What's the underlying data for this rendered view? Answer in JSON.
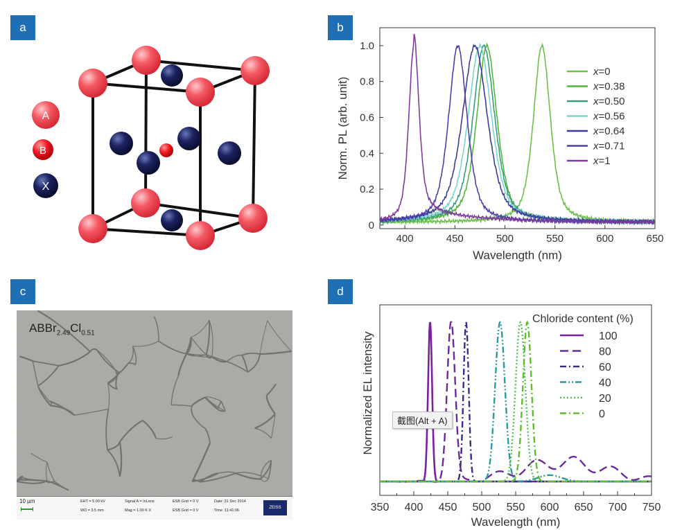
{
  "panels": {
    "a": {
      "label": "a",
      "legend": [
        "A",
        "B",
        "X"
      ]
    },
    "b": {
      "label": "b"
    },
    "c": {
      "label": "c",
      "sample": {
        "prefix": "ABBr",
        "br_sub": "2.49",
        "cl": "Cl",
        "cl_sub": "0.51"
      },
      "footer": {
        "scale": "10 µm",
        "eht": "EHT = 5.00 kV",
        "wd": "WD = 3.5 mm",
        "signal": "Signal A = InLens",
        "mag": "Mag = 1.00 K X",
        "grid1": "ESB Grid = 0 V",
        "grid2": "ESB Grid = 0 V",
        "date": "Date :31 Dec 2014",
        "time": "Time :11:41:06",
        "logo": "ZEISS"
      }
    },
    "d": {
      "label": "d"
    }
  },
  "tooltip": "截图(Alt + A)",
  "colors": {
    "panel_label_bg": "#1f6fb5",
    "atom_A": "#f0505a",
    "atom_B": "#e8141c",
    "atom_X": "#1a2150"
  },
  "chart_data": [
    {
      "type": "line",
      "panel": "b",
      "xlabel": "Wavelength (nm)",
      "ylabel": "Norm. PL (arb. unit)",
      "xlim": [
        375,
        650
      ],
      "ylim": [
        -0.02,
        1.1
      ],
      "xticks": [
        400,
        450,
        500,
        550,
        600,
        650
      ],
      "yticks": [
        0,
        0.2,
        0.4,
        0.6,
        0.8,
        1.0
      ],
      "ytick_labels": [
        "0",
        "0.2",
        "0.4",
        "0.6",
        "0.8",
        "1.0"
      ],
      "legend_position": "top-right",
      "series": [
        {
          "name": "x=0",
          "var": "x",
          "val": "=0",
          "color": "#6cc04a",
          "peak": 537,
          "fwhm": 20
        },
        {
          "name": "x=0.38",
          "var": "x",
          "val": "=0.38",
          "color": "#52b83a",
          "peak": 482,
          "fwhm": 24
        },
        {
          "name": "x=0.50",
          "var": "x",
          "val": "=0.50",
          "color": "#3a9a7a",
          "peak": 479,
          "fwhm": 26
        },
        {
          "name": "x=0.56",
          "var": "x",
          "val": "=0.56",
          "color": "#7dd3cf",
          "peak": 475,
          "fwhm": 28
        },
        {
          "name": "x=0.64",
          "var": "x",
          "val": "=0.64",
          "color": "#3a3a9a",
          "peak": 470,
          "fwhm": 30
        },
        {
          "name": "x=0.71",
          "var": "x",
          "val": "=0.71",
          "color": "#4b3fa8",
          "peak": 453,
          "fwhm": 22
        },
        {
          "name": "x=1",
          "var": "x",
          "val": "=1",
          "color": "#7d3a9e",
          "peak": 409,
          "fwhm": 12
        }
      ]
    },
    {
      "type": "line",
      "panel": "d",
      "title": "Chloride content (%)",
      "xlabel": "Wavelength (nm)",
      "ylabel": "Normalized EL intensity",
      "xlim": [
        350,
        750
      ],
      "xticks": [
        350,
        400,
        450,
        500,
        550,
        600,
        650,
        700,
        750
      ],
      "legend_position": "top-right",
      "series": [
        {
          "name": "100",
          "color": "#7a1fa0",
          "dash": "solid",
          "peak": 424,
          "fwhm": 7
        },
        {
          "name": "80",
          "color": "#6a2a9a",
          "dash": "long-dash",
          "peak": 455,
          "fwhm": 14
        },
        {
          "name": "60",
          "color": "#3a2a8a",
          "dash": "dash-dot",
          "peak": 477,
          "fwhm": 9
        },
        {
          "name": "40",
          "color": "#2a9aa0",
          "dash": "dash-dot-dot",
          "peak": 527,
          "fwhm": 17
        },
        {
          "name": "20",
          "color": "#4cc04c",
          "dash": "dotted",
          "peak": 557,
          "fwhm": 17
        },
        {
          "name": "0",
          "color": "#5cbf2a",
          "dash": "dash-dot",
          "peak": 567,
          "fwhm": 15
        }
      ]
    }
  ]
}
